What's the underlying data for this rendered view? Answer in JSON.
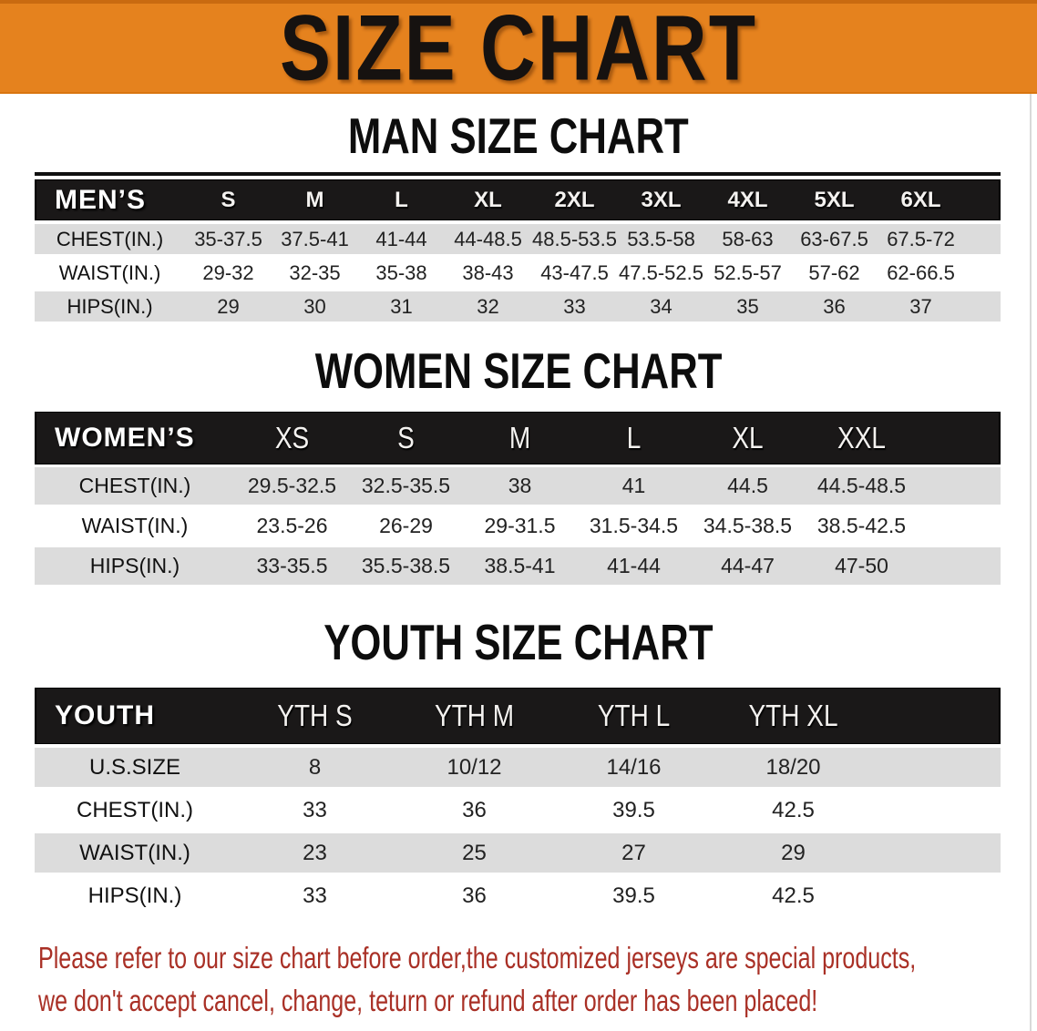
{
  "banner": {
    "title": "SIZE CHART"
  },
  "colors": {
    "banner_orange": "#E5821E",
    "band_black": "#1A1818",
    "row_gray": "#DCDCDC",
    "notice_red": "#A93026",
    "text_dark": "#1E1E1E"
  },
  "sections": [
    {
      "id": "men",
      "heading": "MAN SIZE CHART",
      "label": "MEN’S",
      "columns": [
        "S",
        "M",
        "L",
        "XL",
        "2XL",
        "3XL",
        "4XL",
        "5XL",
        "6XL"
      ],
      "rows": [
        {
          "label": "CHEST(IN.)",
          "values": [
            "35-37.5",
            "37.5-41",
            "41-44",
            "44-48.5",
            "48.5-53.5",
            "53.5-58",
            "58-63",
            "63-67.5",
            "67.5-72"
          ]
        },
        {
          "label": "WAIST(IN.)",
          "values": [
            "29-32",
            "32-35",
            "35-38",
            "38-43",
            "43-47.5",
            "47.5-52.5",
            "52.5-57",
            "57-62",
            "62-66.5"
          ]
        },
        {
          "label": "HIPS(IN.)",
          "values": [
            "29",
            "30",
            "31",
            "32",
            "33",
            "34",
            "35",
            "36",
            "37"
          ]
        }
      ]
    },
    {
      "id": "women",
      "heading": "WOMEN SIZE CHART",
      "label": "WOMEN’S",
      "columns": [
        "XS",
        "S",
        "M",
        "L",
        "XL",
        "XXL"
      ],
      "rows": [
        {
          "label": "CHEST(IN.)",
          "values": [
            "29.5-32.5",
            "32.5-35.5",
            "38",
            "41",
            "44.5",
            "44.5-48.5"
          ]
        },
        {
          "label": "WAIST(IN.)",
          "values": [
            "23.5-26",
            "26-29",
            "29-31.5",
            "31.5-34.5",
            "34.5-38.5",
            "38.5-42.5"
          ]
        },
        {
          "label": "HIPS(IN.)",
          "values": [
            "33-35.5",
            "35.5-38.5",
            "38.5-41",
            "41-44",
            "44-47",
            "47-50"
          ]
        }
      ]
    },
    {
      "id": "youth",
      "heading": "YOUTH SIZE CHART",
      "label": "YOUTH",
      "columns": [
        "YTH S",
        "YTH M",
        "YTH L",
        "YTH XL"
      ],
      "rows": [
        {
          "label": "U.S.SIZE",
          "values": [
            "8",
            "10/12",
            "14/16",
            "18/20"
          ]
        },
        {
          "label": "CHEST(IN.)",
          "values": [
            "33",
            "36",
            "39.5",
            "42.5"
          ]
        },
        {
          "label": "WAIST(IN.)",
          "values": [
            "23",
            "25",
            "27",
            "29"
          ]
        },
        {
          "label": "HIPS(IN.)",
          "values": [
            "33",
            "36",
            "39.5",
            "42.5"
          ]
        }
      ]
    }
  ],
  "footer": {
    "line1": "Please refer to our size chart before order,the customized jerseys are special products,",
    "line2": "we don't accept cancel, change, teturn or refund after order has been placed!"
  }
}
